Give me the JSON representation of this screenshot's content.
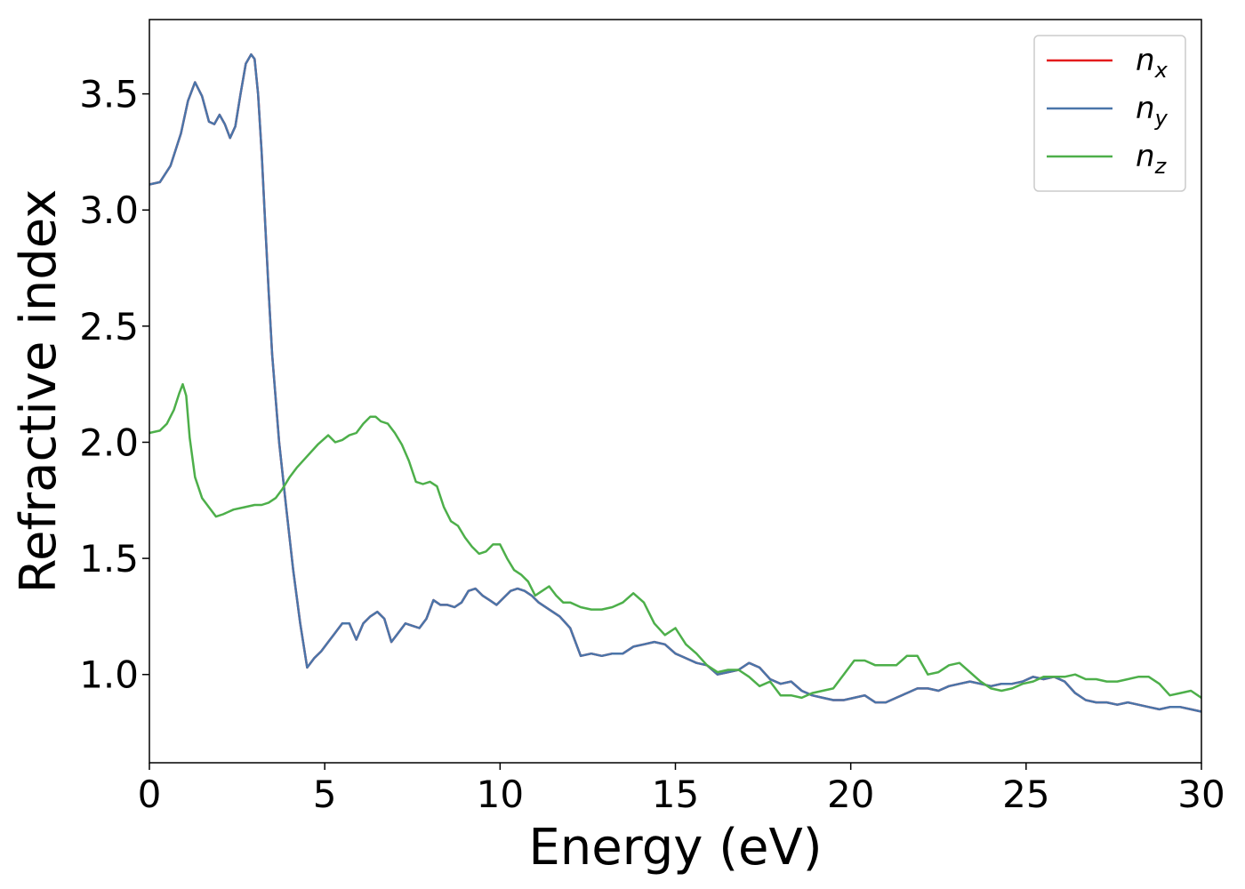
{
  "chart_data": {
    "type": "line",
    "xlabel": "Energy (eV)",
    "ylabel": "Refractive index",
    "xlim": [
      0,
      30
    ],
    "ylim": [
      0.62,
      3.82
    ],
    "xticks": [
      0,
      5,
      10,
      15,
      20,
      25,
      30
    ],
    "xtick_labels": [
      "0",
      "5",
      "10",
      "15",
      "20",
      "25",
      "30"
    ],
    "yticks": [
      1.0,
      1.5,
      2.0,
      2.5,
      3.0,
      3.5
    ],
    "ytick_labels": [
      "1.0",
      "1.5",
      "2.0",
      "2.5",
      "3.0",
      "3.5"
    ],
    "grid": false,
    "legend_position": "top-right",
    "series": [
      {
        "name": "n",
        "subscript": "x",
        "color": "#e41a1c",
        "x": [
          0,
          0.3,
          0.6,
          0.9,
          1.1,
          1.3,
          1.5,
          1.7,
          1.85,
          2.0,
          2.15,
          2.3,
          2.45,
          2.6,
          2.75,
          2.9,
          3.0,
          3.1,
          3.2,
          3.3,
          3.4,
          3.5,
          3.7,
          3.9,
          4.1,
          4.3,
          4.5,
          4.7,
          4.9,
          5.1,
          5.3,
          5.5,
          5.7,
          5.9,
          6.1,
          6.3,
          6.5,
          6.7,
          6.9,
          7.1,
          7.3,
          7.5,
          7.7,
          7.9,
          8.1,
          8.3,
          8.5,
          8.7,
          8.9,
          9.1,
          9.3,
          9.5,
          9.7,
          9.9,
          10.1,
          10.3,
          10.5,
          10.7,
          10.9,
          11.1,
          11.4,
          11.7,
          12.0,
          12.3,
          12.6,
          12.9,
          13.2,
          13.5,
          13.8,
          14.1,
          14.4,
          14.7,
          15.0,
          15.3,
          15.6,
          15.9,
          16.2,
          16.5,
          16.8,
          17.1,
          17.4,
          17.7,
          18.0,
          18.3,
          18.6,
          18.9,
          19.2,
          19.5,
          19.8,
          20.1,
          20.4,
          20.7,
          21.0,
          21.3,
          21.6,
          21.9,
          22.2,
          22.5,
          22.8,
          23.1,
          23.4,
          23.7,
          24.0,
          24.3,
          24.6,
          24.9,
          25.2,
          25.5,
          25.8,
          26.1,
          26.4,
          26.7,
          27.0,
          27.3,
          27.6,
          27.9,
          28.2,
          28.5,
          28.8,
          29.1,
          29.4,
          29.7,
          30.0
        ],
        "y": [
          3.11,
          3.12,
          3.19,
          3.33,
          3.47,
          3.55,
          3.49,
          3.38,
          3.37,
          3.41,
          3.37,
          3.31,
          3.36,
          3.5,
          3.63,
          3.67,
          3.65,
          3.5,
          3.25,
          2.95,
          2.65,
          2.38,
          2.0,
          1.72,
          1.45,
          1.22,
          1.03,
          1.07,
          1.1,
          1.14,
          1.18,
          1.22,
          1.22,
          1.15,
          1.22,
          1.25,
          1.27,
          1.24,
          1.14,
          1.18,
          1.22,
          1.21,
          1.2,
          1.24,
          1.32,
          1.3,
          1.3,
          1.29,
          1.31,
          1.36,
          1.37,
          1.34,
          1.32,
          1.3,
          1.33,
          1.36,
          1.37,
          1.36,
          1.34,
          1.31,
          1.28,
          1.25,
          1.2,
          1.08,
          1.09,
          1.08,
          1.09,
          1.09,
          1.12,
          1.13,
          1.14,
          1.13,
          1.09,
          1.07,
          1.05,
          1.04,
          1.0,
          1.01,
          1.02,
          1.05,
          1.03,
          0.98,
          0.96,
          0.97,
          0.93,
          0.91,
          0.9,
          0.89,
          0.89,
          0.9,
          0.91,
          0.88,
          0.88,
          0.9,
          0.92,
          0.94,
          0.94,
          0.93,
          0.95,
          0.96,
          0.97,
          0.96,
          0.95,
          0.96,
          0.96,
          0.97,
          0.99,
          0.98,
          0.99,
          0.97,
          0.92,
          0.89,
          0.88,
          0.88,
          0.87,
          0.88,
          0.87,
          0.86,
          0.85,
          0.86,
          0.86,
          0.85,
          0.84
        ]
      },
      {
        "name": "n",
        "subscript": "y",
        "color": "#4a75a9",
        "x": [
          0,
          0.3,
          0.6,
          0.9,
          1.1,
          1.3,
          1.5,
          1.7,
          1.85,
          2.0,
          2.15,
          2.3,
          2.45,
          2.6,
          2.75,
          2.9,
          3.0,
          3.1,
          3.2,
          3.3,
          3.4,
          3.5,
          3.7,
          3.9,
          4.1,
          4.3,
          4.5,
          4.7,
          4.9,
          5.1,
          5.3,
          5.5,
          5.7,
          5.9,
          6.1,
          6.3,
          6.5,
          6.7,
          6.9,
          7.1,
          7.3,
          7.5,
          7.7,
          7.9,
          8.1,
          8.3,
          8.5,
          8.7,
          8.9,
          9.1,
          9.3,
          9.5,
          9.7,
          9.9,
          10.1,
          10.3,
          10.5,
          10.7,
          10.9,
          11.1,
          11.4,
          11.7,
          12.0,
          12.3,
          12.6,
          12.9,
          13.2,
          13.5,
          13.8,
          14.1,
          14.4,
          14.7,
          15.0,
          15.3,
          15.6,
          15.9,
          16.2,
          16.5,
          16.8,
          17.1,
          17.4,
          17.7,
          18.0,
          18.3,
          18.6,
          18.9,
          19.2,
          19.5,
          19.8,
          20.1,
          20.4,
          20.7,
          21.0,
          21.3,
          21.6,
          21.9,
          22.2,
          22.5,
          22.8,
          23.1,
          23.4,
          23.7,
          24.0,
          24.3,
          24.6,
          24.9,
          25.2,
          25.5,
          25.8,
          26.1,
          26.4,
          26.7,
          27.0,
          27.3,
          27.6,
          27.9,
          28.2,
          28.5,
          28.8,
          29.1,
          29.4,
          29.7,
          30.0
        ],
        "y": [
          3.11,
          3.12,
          3.19,
          3.33,
          3.47,
          3.55,
          3.49,
          3.38,
          3.37,
          3.41,
          3.37,
          3.31,
          3.36,
          3.5,
          3.63,
          3.67,
          3.65,
          3.5,
          3.25,
          2.95,
          2.65,
          2.38,
          2.0,
          1.72,
          1.45,
          1.22,
          1.03,
          1.07,
          1.1,
          1.14,
          1.18,
          1.22,
          1.22,
          1.15,
          1.22,
          1.25,
          1.27,
          1.24,
          1.14,
          1.18,
          1.22,
          1.21,
          1.2,
          1.24,
          1.32,
          1.3,
          1.3,
          1.29,
          1.31,
          1.36,
          1.37,
          1.34,
          1.32,
          1.3,
          1.33,
          1.36,
          1.37,
          1.36,
          1.34,
          1.31,
          1.28,
          1.25,
          1.2,
          1.08,
          1.09,
          1.08,
          1.09,
          1.09,
          1.12,
          1.13,
          1.14,
          1.13,
          1.09,
          1.07,
          1.05,
          1.04,
          1.0,
          1.01,
          1.02,
          1.05,
          1.03,
          0.98,
          0.96,
          0.97,
          0.93,
          0.91,
          0.9,
          0.89,
          0.89,
          0.9,
          0.91,
          0.88,
          0.88,
          0.9,
          0.92,
          0.94,
          0.94,
          0.93,
          0.95,
          0.96,
          0.97,
          0.96,
          0.95,
          0.96,
          0.96,
          0.97,
          0.99,
          0.98,
          0.99,
          0.97,
          0.92,
          0.89,
          0.88,
          0.88,
          0.87,
          0.88,
          0.87,
          0.86,
          0.85,
          0.86,
          0.86,
          0.85,
          0.84
        ]
      },
      {
        "name": "n",
        "subscript": "z",
        "color": "#4daf4a",
        "x": [
          0,
          0.3,
          0.5,
          0.7,
          0.85,
          0.95,
          1.05,
          1.15,
          1.3,
          1.5,
          1.7,
          1.9,
          2.1,
          2.4,
          2.7,
          3.0,
          3.2,
          3.4,
          3.6,
          3.8,
          4.0,
          4.2,
          4.5,
          4.8,
          5.1,
          5.3,
          5.5,
          5.7,
          5.9,
          6.1,
          6.3,
          6.45,
          6.6,
          6.8,
          7.0,
          7.2,
          7.4,
          7.6,
          7.8,
          8.0,
          8.2,
          8.4,
          8.6,
          8.8,
          9.0,
          9.2,
          9.4,
          9.6,
          9.8,
          10.0,
          10.2,
          10.4,
          10.6,
          10.8,
          11.0,
          11.2,
          11.4,
          11.6,
          11.8,
          12.0,
          12.3,
          12.6,
          12.9,
          13.2,
          13.5,
          13.8,
          14.1,
          14.4,
          14.7,
          15.0,
          15.3,
          15.6,
          15.9,
          16.2,
          16.5,
          16.8,
          17.1,
          17.4,
          17.7,
          18.0,
          18.3,
          18.6,
          18.9,
          19.2,
          19.5,
          19.8,
          20.1,
          20.4,
          20.7,
          21.0,
          21.3,
          21.6,
          21.9,
          22.2,
          22.5,
          22.8,
          23.1,
          23.4,
          23.7,
          24.0,
          24.3,
          24.6,
          24.9,
          25.2,
          25.5,
          25.8,
          26.1,
          26.4,
          26.7,
          27.0,
          27.3,
          27.6,
          27.9,
          28.2,
          28.5,
          28.8,
          29.1,
          29.4,
          29.7,
          30.0
        ],
        "y": [
          2.04,
          2.05,
          2.08,
          2.14,
          2.21,
          2.25,
          2.2,
          2.02,
          1.85,
          1.76,
          1.72,
          1.68,
          1.69,
          1.71,
          1.72,
          1.73,
          1.73,
          1.74,
          1.76,
          1.8,
          1.85,
          1.89,
          1.94,
          1.99,
          2.03,
          2.0,
          2.01,
          2.03,
          2.04,
          2.08,
          2.11,
          2.11,
          2.09,
          2.08,
          2.04,
          1.99,
          1.92,
          1.83,
          1.82,
          1.83,
          1.81,
          1.72,
          1.66,
          1.64,
          1.59,
          1.55,
          1.52,
          1.53,
          1.56,
          1.56,
          1.5,
          1.45,
          1.43,
          1.4,
          1.34,
          1.36,
          1.38,
          1.34,
          1.31,
          1.31,
          1.29,
          1.28,
          1.28,
          1.29,
          1.31,
          1.35,
          1.31,
          1.22,
          1.17,
          1.2,
          1.13,
          1.09,
          1.04,
          1.01,
          1.02,
          1.02,
          0.99,
          0.95,
          0.97,
          0.91,
          0.91,
          0.9,
          0.92,
          0.93,
          0.94,
          1.0,
          1.06,
          1.06,
          1.04,
          1.04,
          1.04,
          1.08,
          1.08,
          1.0,
          1.01,
          1.04,
          1.05,
          1.01,
          0.97,
          0.94,
          0.93,
          0.94,
          0.96,
          0.97,
          0.99,
          0.99,
          0.99,
          1.0,
          0.98,
          0.98,
          0.97,
          0.97,
          0.98,
          0.99,
          0.99,
          0.96,
          0.91,
          0.92,
          0.93,
          0.9
        ]
      }
    ]
  }
}
